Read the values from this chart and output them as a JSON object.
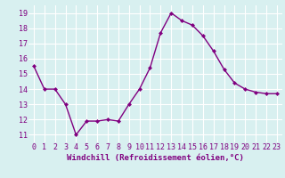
{
  "x": [
    0,
    1,
    2,
    3,
    4,
    5,
    6,
    7,
    8,
    9,
    10,
    11,
    12,
    13,
    14,
    15,
    16,
    17,
    18,
    19,
    20,
    21,
    22,
    23
  ],
  "y": [
    15.5,
    14.0,
    14.0,
    13.0,
    11.0,
    11.9,
    11.9,
    12.0,
    11.9,
    13.0,
    14.0,
    15.4,
    17.7,
    19.0,
    18.5,
    18.2,
    17.5,
    16.5,
    15.3,
    14.4,
    14.0,
    13.8,
    13.7,
    13.7
  ],
  "line_color": "#800080",
  "marker": "D",
  "marker_size": 2.0,
  "bg_color": "#d8f0f0",
  "grid_color": "#ffffff",
  "xlabel": "Windchill (Refroidissement éolien,°C)",
  "xlabel_color": "#800080",
  "tick_color": "#800080",
  "ylim": [
    10.5,
    19.5
  ],
  "xlim": [
    -0.5,
    23.5
  ],
  "yticks": [
    11,
    12,
    13,
    14,
    15,
    16,
    17,
    18,
    19
  ],
  "xticks": [
    0,
    1,
    2,
    3,
    4,
    5,
    6,
    7,
    8,
    9,
    10,
    11,
    12,
    13,
    14,
    15,
    16,
    17,
    18,
    19,
    20,
    21,
    22,
    23
  ],
  "xtick_labels": [
    "0",
    "1",
    "2",
    "3",
    "4",
    "5",
    "6",
    "7",
    "8",
    "9",
    "10",
    "11",
    "12",
    "13",
    "14",
    "15",
    "16",
    "17",
    "18",
    "19",
    "20",
    "21",
    "22",
    "23"
  ],
  "xlabel_fontsize": 6.5,
  "tick_fontsize": 6.0,
  "linewidth": 1.0
}
